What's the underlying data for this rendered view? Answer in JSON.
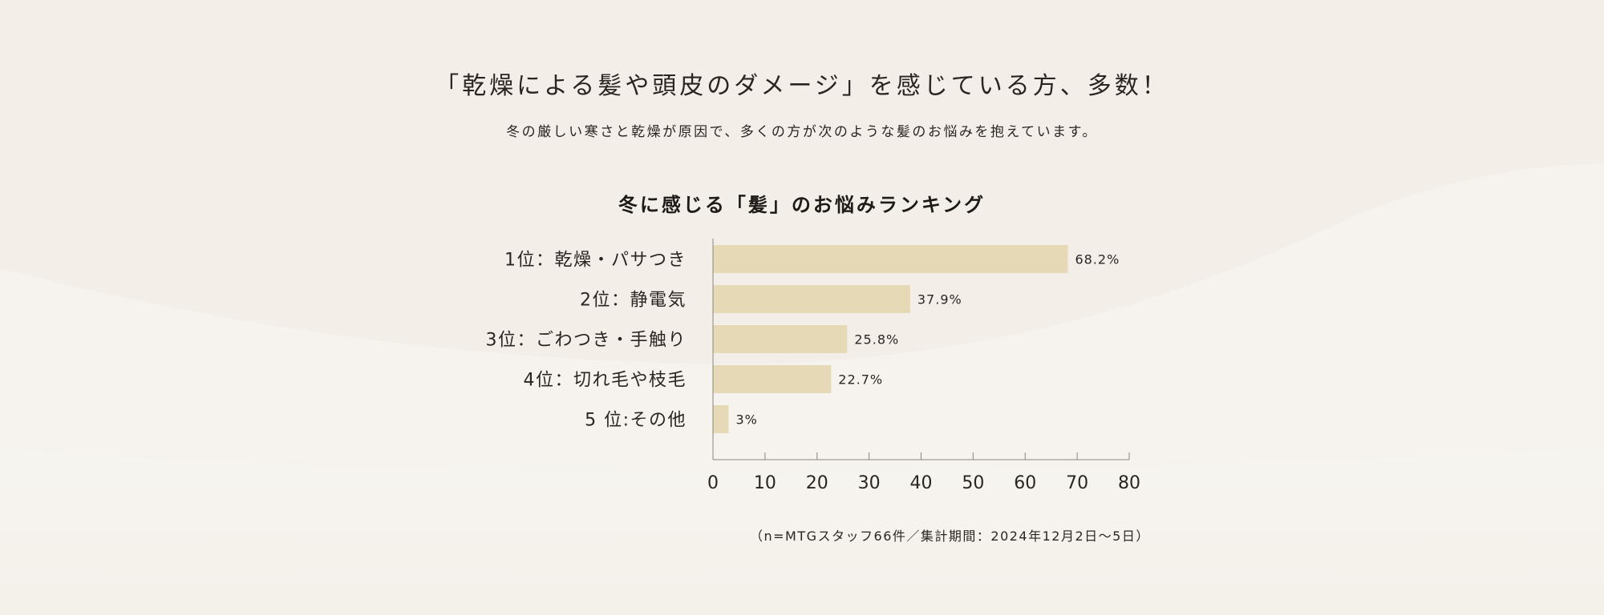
{
  "headline": "「乾燥による髪や頭皮のダメージ」を感じている方、多数！",
  "subheadline": "冬の厳しい寒さと乾燥が原因で、多くの方が次のような髪のお悩みを抱えています。",
  "note": "（n=MTGスタッフ66件／集計期間：2024年12月2日〜5日）",
  "colors": {
    "background": "#f3efe8",
    "bar": "#e6d9b6",
    "axis": "#8a8580",
    "text": "#2b2522"
  },
  "chart_data": {
    "type": "bar",
    "orientation": "horizontal",
    "title": "冬に感じる「髪」のお悩みランキング",
    "categories": [
      "1位：乾燥・パサつき",
      "2位：静電気",
      "3位：ごわつき・手触り",
      "4位：切れ毛や枝毛",
      "5 位:その他"
    ],
    "values": [
      68.2,
      37.9,
      25.8,
      22.7,
      3
    ],
    "value_labels": [
      "68.2%",
      "37.9%",
      "25.8%",
      "22.7%",
      "3%"
    ],
    "xlim": [
      0,
      80
    ],
    "xticks": [
      0,
      10,
      20,
      30,
      40,
      50,
      60,
      70,
      80
    ],
    "grid": false,
    "legend": "none"
  }
}
